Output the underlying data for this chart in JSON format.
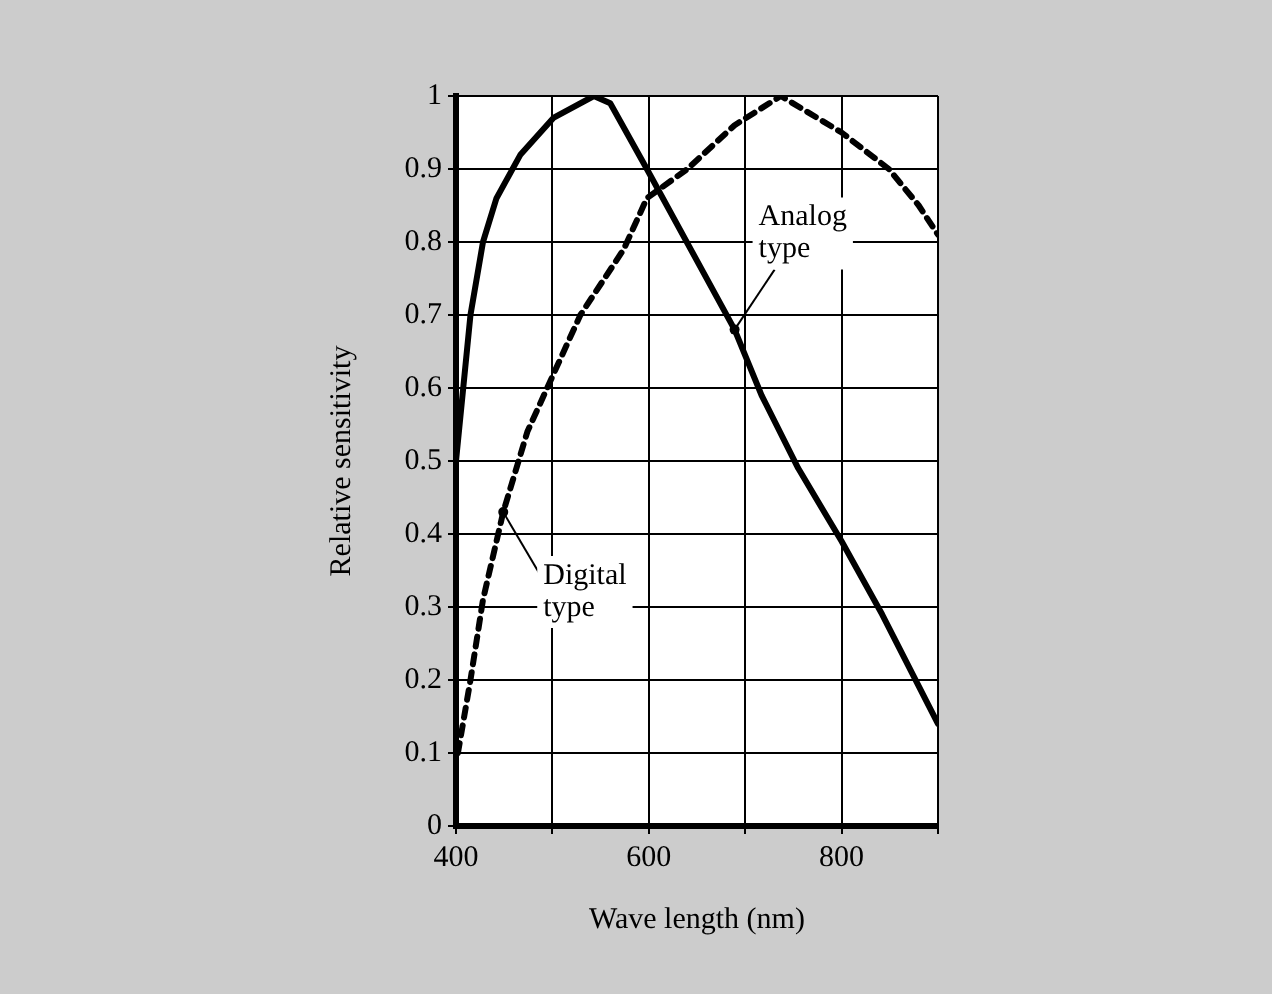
{
  "chart_data": {
    "type": "line",
    "xlabel": "Wave length (nm)",
    "ylabel": "Relative sensitivity",
    "xlim": [
      400,
      900
    ],
    "xticks": [
      400,
      {
        "value": 500,
        "label": null
      },
      600,
      {
        "value": 700,
        "label": null
      },
      800,
      {
        "value": 900,
        "label": null
      }
    ],
    "ylim": [
      0,
      1
    ],
    "yticks": [
      0,
      0.1,
      0.2,
      0.3,
      0.4,
      0.5,
      0.6,
      0.7,
      0.8,
      0.9,
      1
    ],
    "grid": true,
    "legend": false,
    "marker": "none",
    "series": [
      {
        "color": "#000000",
        "line_style": "solid",
        "x": [
          400,
          415,
          428,
          442,
          467,
          501,
          543,
          560,
          598,
          689,
          717,
          755,
          800,
          842,
          900
        ],
        "values": [
          0.5,
          0.7,
          0.8,
          0.86,
          0.92,
          0.97,
          1.0,
          0.99,
          0.9,
          0.68,
          0.59,
          0.49,
          0.39,
          0.29,
          0.14
        ]
      },
      {
        "color": "#000000",
        "line_style": "dashed",
        "x": [
          402,
          415,
          428,
          449,
          474,
          498,
          529,
          574,
          598,
          640,
          689,
          737,
          800,
          849,
          880,
          900
        ],
        "values": [
          0.1,
          0.2,
          0.31,
          0.43,
          0.54,
          0.61,
          0.7,
          0.79,
          0.86,
          0.9,
          0.96,
          1.0,
          0.95,
          0.9,
          0.85,
          0.81
        ]
      }
    ],
    "annotations": [
      {
        "text": "Analog\ntype",
        "x": 689,
        "y": 0.68
      },
      {
        "text": "Digital\ntype",
        "x": 449,
        "y": 0.43
      }
    ]
  }
}
